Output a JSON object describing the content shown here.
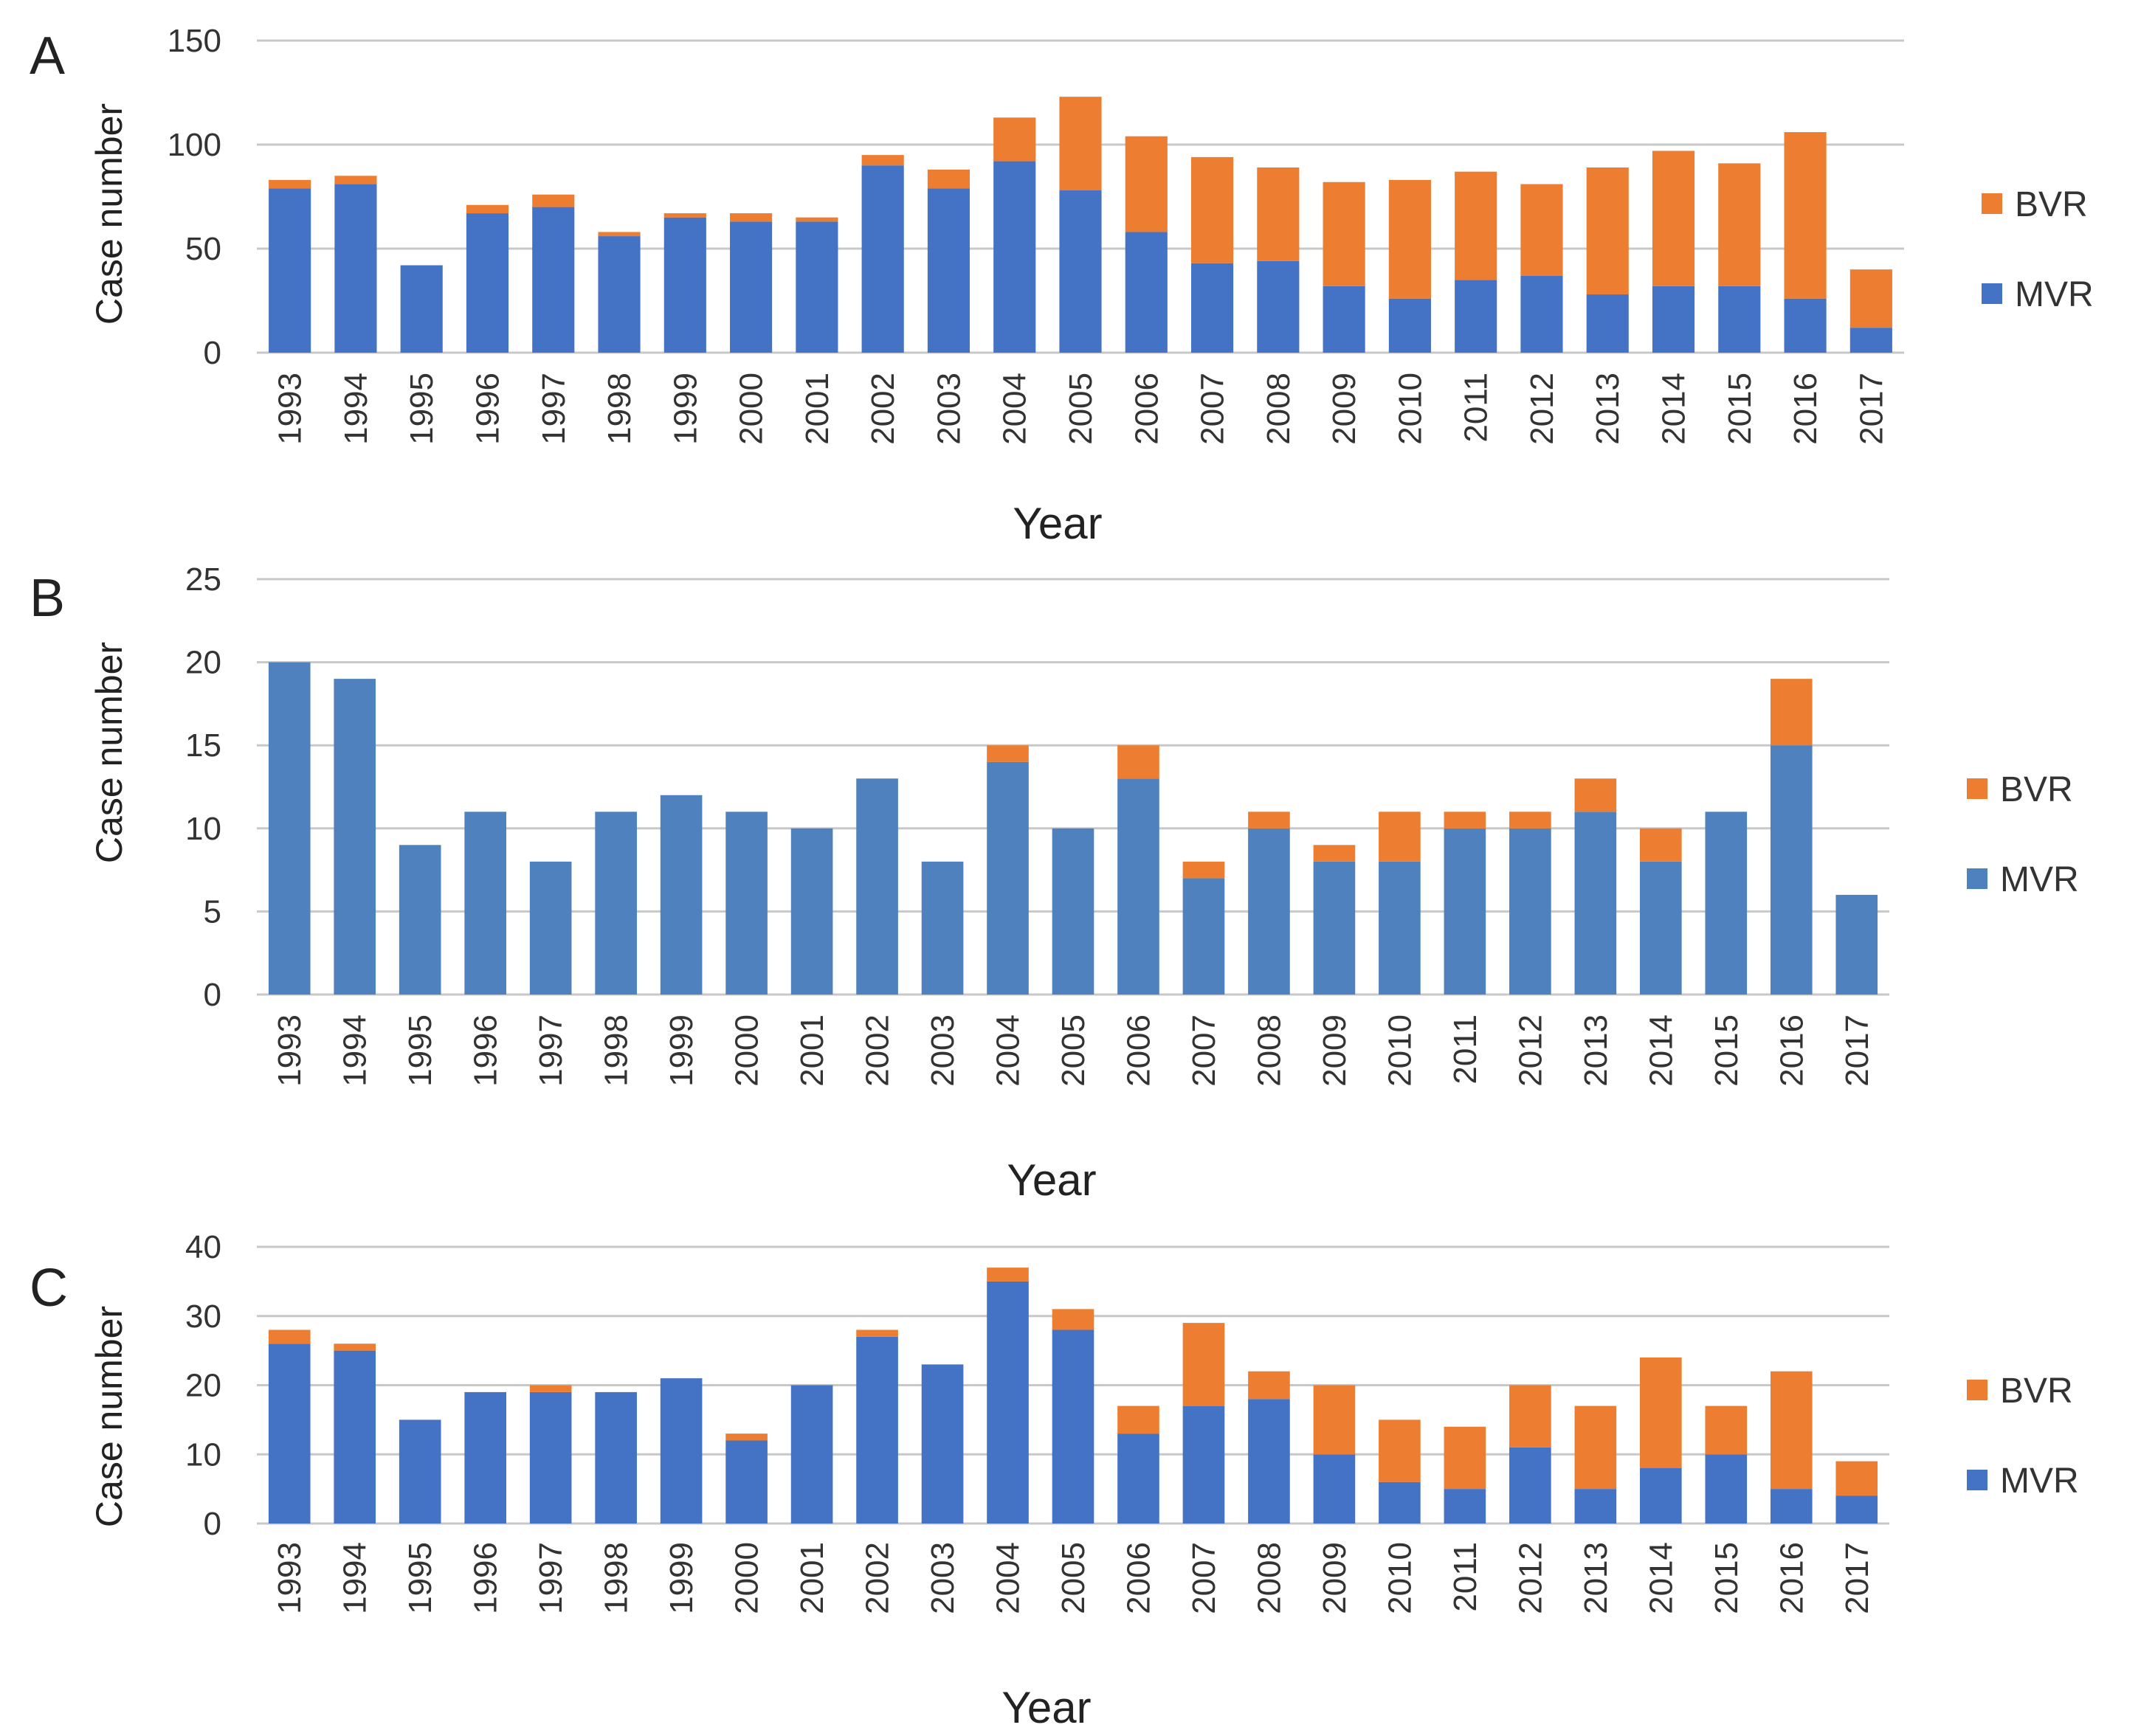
{
  "chart_data": [
    {
      "type": "bar",
      "stacked": true,
      "panel": "A",
      "ylabel": "Case number",
      "xlabel": "Year",
      "ylim": [
        0,
        150
      ],
      "yticks": [
        0,
        50,
        100,
        150
      ],
      "categories": [
        "1993",
        "1994",
        "1995",
        "1996",
        "1997",
        "1998",
        "1999",
        "2000",
        "2001",
        "2002",
        "2003",
        "2004",
        "2005",
        "2006",
        "2007",
        "2008",
        "2009",
        "2010",
        "2011",
        "2012",
        "2013",
        "2014",
        "2015",
        "2016",
        "2017"
      ],
      "series": [
        {
          "name": "MVR",
          "color": "#4472C4",
          "values": [
            79,
            81,
            42,
            67,
            70,
            56,
            65,
            63,
            63,
            90,
            79,
            92,
            78,
            58,
            43,
            44,
            32,
            26,
            35,
            37,
            28,
            32,
            32,
            26,
            12
          ]
        },
        {
          "name": "BVR",
          "color": "#ED7D31",
          "values": [
            4,
            4,
            0,
            4,
            6,
            2,
            2,
            4,
            2,
            5,
            9,
            21,
            45,
            46,
            51,
            45,
            50,
            57,
            52,
            44,
            61,
            65,
            59,
            80,
            28
          ]
        }
      ],
      "legend": [
        "BVR",
        "MVR"
      ]
    },
    {
      "type": "bar",
      "stacked": true,
      "panel": "B",
      "ylabel": "Case number",
      "xlabel": "Year",
      "ylim": [
        0,
        25
      ],
      "yticks": [
        0,
        5,
        10,
        15,
        20,
        25
      ],
      "categories": [
        "1993",
        "1994",
        "1995",
        "1996",
        "1997",
        "1998",
        "1999",
        "2000",
        "2001",
        "2002",
        "2003",
        "2004",
        "2005",
        "2006",
        "2007",
        "2008",
        "2009",
        "2010",
        "2011",
        "2012",
        "2013",
        "2014",
        "2015",
        "2016",
        "2017"
      ],
      "series": [
        {
          "name": "MVR",
          "color": "#4E81BD",
          "values": [
            20,
            19,
            9,
            11,
            8,
            11,
            12,
            11,
            10,
            13,
            8,
            14,
            10,
            13,
            7,
            10,
            8,
            8,
            10,
            10,
            11,
            8,
            11,
            15,
            6
          ]
        },
        {
          "name": "BVR",
          "color": "#ED7D31",
          "values": [
            0,
            0,
            0,
            0,
            0,
            0,
            0,
            0,
            0,
            0,
            0,
            1,
            0,
            2,
            1,
            1,
            1,
            3,
            1,
            1,
            2,
            2,
            0,
            4,
            0
          ]
        }
      ],
      "legend": [
        "BVR",
        "MVR"
      ]
    },
    {
      "type": "bar",
      "stacked": true,
      "panel": "C",
      "ylabel": "Case number",
      "xlabel": "Year",
      "ylim": [
        0,
        40
      ],
      "yticks": [
        0,
        10,
        20,
        30,
        40
      ],
      "categories": [
        "1993",
        "1994",
        "1995",
        "1996",
        "1997",
        "1998",
        "1999",
        "2000",
        "2001",
        "2002",
        "2003",
        "2004",
        "2005",
        "2006",
        "2007",
        "2008",
        "2009",
        "2010",
        "2011",
        "2012",
        "2013",
        "2014",
        "2015",
        "2016",
        "2017"
      ],
      "series": [
        {
          "name": "MVR",
          "color": "#4472C4",
          "values": [
            26,
            25,
            15,
            19,
            19,
            19,
            21,
            12,
            20,
            27,
            23,
            35,
            28,
            13,
            17,
            18,
            10,
            6,
            5,
            11,
            5,
            8,
            10,
            5,
            4
          ]
        },
        {
          "name": "BVR",
          "color": "#ED7D31",
          "values": [
            2,
            1,
            0,
            0,
            1,
            0,
            0,
            1,
            0,
            1,
            0,
            2,
            3,
            4,
            12,
            4,
            10,
            9,
            9,
            9,
            12,
            16,
            7,
            17,
            5
          ]
        }
      ],
      "legend": [
        "BVR",
        "MVR"
      ]
    }
  ]
}
